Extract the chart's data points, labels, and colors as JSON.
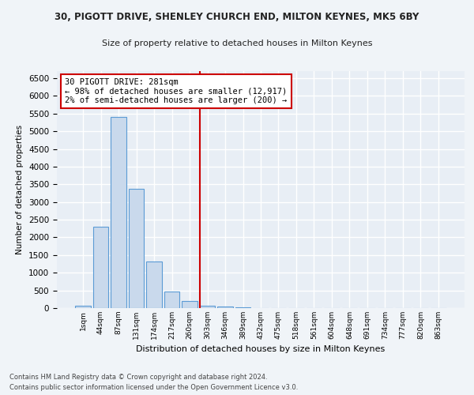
{
  "title1": "30, PIGOTT DRIVE, SHENLEY CHURCH END, MILTON KEYNES, MK5 6BY",
  "title2": "Size of property relative to detached houses in Milton Keynes",
  "xlabel": "Distribution of detached houses by size in Milton Keynes",
  "ylabel": "Number of detached properties",
  "footer1": "Contains HM Land Registry data © Crown copyright and database right 2024.",
  "footer2": "Contains public sector information licensed under the Open Government Licence v3.0.",
  "bar_labels": [
    "1sqm",
    "44sqm",
    "87sqm",
    "131sqm",
    "174sqm",
    "217sqm",
    "260sqm",
    "303sqm",
    "346sqm",
    "389sqm",
    "432sqm",
    "475sqm",
    "518sqm",
    "561sqm",
    "604sqm",
    "648sqm",
    "691sqm",
    "734sqm",
    "777sqm",
    "820sqm",
    "863sqm"
  ],
  "bar_values": [
    75,
    2300,
    5400,
    3380,
    1320,
    480,
    190,
    75,
    55,
    20,
    0,
    0,
    0,
    0,
    0,
    0,
    0,
    0,
    0,
    0,
    0
  ],
  "bar_color": "#c9d9ec",
  "bar_edgecolor": "#5b9bd5",
  "vline_x": 6.57,
  "vline_color": "#cc0000",
  "annotation_title": "30 PIGOTT DRIVE: 281sqm",
  "annotation_line1": "← 98% of detached houses are smaller (12,917)",
  "annotation_line2": "2% of semi-detached houses are larger (200) →",
  "annotation_box_color": "#cc0000",
  "ylim": [
    0,
    6700
  ],
  "background_color": "#e8eef5",
  "grid_color": "#ffffff",
  "fig_facecolor": "#f0f4f8"
}
